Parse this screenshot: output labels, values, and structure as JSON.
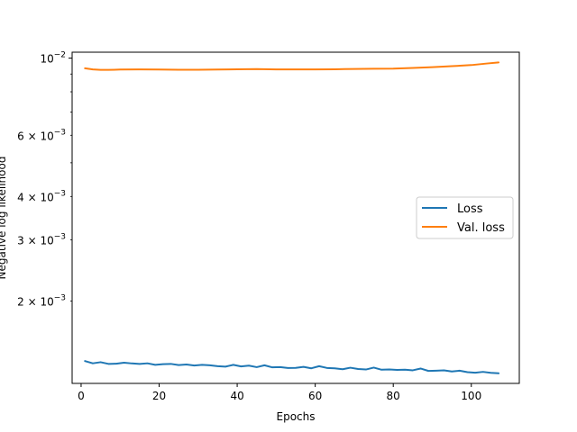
{
  "chart_data": {
    "type": "line",
    "title": "",
    "xlabel": "Epochs",
    "ylabel": "Negative log likelihood",
    "yscale": "log",
    "xlim": [
      -2.3,
      112.3
    ],
    "ylim": [
      0.00116,
      0.0104
    ],
    "xticks": [
      0,
      20,
      40,
      60,
      80,
      100
    ],
    "xtick_labels": [
      "0",
      "20",
      "40",
      "60",
      "80",
      "100"
    ],
    "yticks": [
      0.01,
      0.006,
      0.004,
      0.003,
      0.002
    ],
    "ytick_labels": [
      {
        "base": "10",
        "exp": "−2"
      },
      {
        "base": "6 × 10",
        "exp": "−3"
      },
      {
        "base": "4 × 10",
        "exp": "−3"
      },
      {
        "base": "3 × 10",
        "exp": "−3"
      },
      {
        "base": "2 × 10",
        "exp": "−3"
      }
    ],
    "grid": false,
    "legend_position": "center-right",
    "series": [
      {
        "name": "Loss",
        "color": "#1f77b4",
        "x": [
          1,
          3,
          5,
          7,
          9,
          11,
          13,
          15,
          17,
          19,
          21,
          23,
          25,
          27,
          29,
          31,
          33,
          35,
          37,
          39,
          41,
          43,
          45,
          47,
          49,
          51,
          53,
          55,
          57,
          59,
          61,
          63,
          65,
          67,
          69,
          71,
          73,
          75,
          77,
          79,
          81,
          83,
          85,
          87,
          89,
          91,
          93,
          95,
          97,
          99,
          101,
          103,
          105,
          107
        ],
        "y": [
          0.001345,
          0.001325,
          0.001335,
          0.00132,
          0.001322,
          0.00133,
          0.001324,
          0.00132,
          0.001325,
          0.001312,
          0.001318,
          0.00132,
          0.00131,
          0.001315,
          0.001306,
          0.001312,
          0.001308,
          0.0013,
          0.001296,
          0.001312,
          0.001298,
          0.001305,
          0.001292,
          0.001308,
          0.00129,
          0.001292,
          0.001285,
          0.001286,
          0.001294,
          0.001282,
          0.0013,
          0.001285,
          0.001282,
          0.001274,
          0.001287,
          0.001276,
          0.001272,
          0.001288,
          0.00127,
          0.001272,
          0.001268,
          0.00127,
          0.001265,
          0.00128,
          0.00126,
          0.001262,
          0.001265,
          0.001255,
          0.001262,
          0.00125,
          0.001245,
          0.001252,
          0.001244,
          0.00124
        ]
      },
      {
        "name": "Val. loss",
        "color": "#ff7f0e",
        "x": [
          1,
          3,
          5,
          7,
          10,
          15,
          20,
          25,
          30,
          35,
          40,
          45,
          50,
          55,
          60,
          65,
          70,
          75,
          80,
          85,
          90,
          95,
          100,
          104,
          107
        ],
        "y": [
          0.00935,
          0.00928,
          0.00925,
          0.00925,
          0.00927,
          0.00928,
          0.00927,
          0.00926,
          0.00926,
          0.00927,
          0.00929,
          0.0093,
          0.00928,
          0.00928,
          0.00928,
          0.00929,
          0.00931,
          0.00932,
          0.00933,
          0.00937,
          0.00942,
          0.00948,
          0.00955,
          0.00965,
          0.00972
        ]
      }
    ]
  }
}
